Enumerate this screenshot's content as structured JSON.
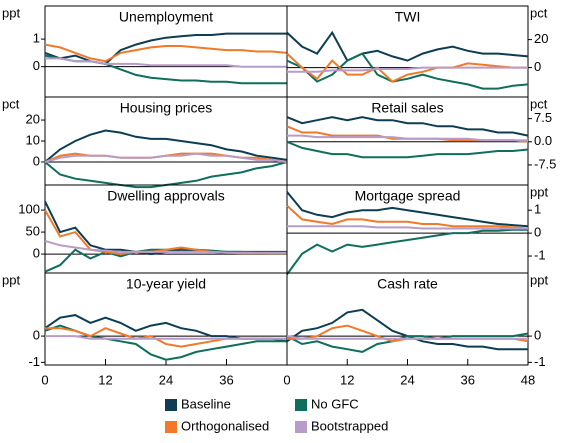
{
  "chart_data": [
    {
      "type": "line",
      "title": "Unemployment",
      "y_label": "ppt",
      "axis_side": "left",
      "x": [
        0,
        3,
        6,
        9,
        12,
        15,
        18,
        21,
        24,
        27,
        30,
        33,
        36,
        39,
        42,
        45,
        48
      ],
      "xlim": [
        0,
        48
      ],
      "ylim": [
        -1.1,
        2.2
      ],
      "yticks": [
        0,
        1
      ],
      "series": [
        {
          "values": [
            0.5,
            0.3,
            0.4,
            0.2,
            0.1,
            0.6,
            0.8,
            0.95,
            1.05,
            1.1,
            1.15,
            1.15,
            1.2,
            1.2,
            1.2,
            1.2,
            1.2
          ]
        },
        {
          "values": [
            0.4,
            0.3,
            0.2,
            0.2,
            0.1,
            -0.1,
            -0.3,
            -0.4,
            -0.45,
            -0.5,
            -0.5,
            -0.55,
            -0.55,
            -0.6,
            -0.6,
            -0.6,
            -0.6
          ]
        },
        {
          "values": [
            0.8,
            0.7,
            0.5,
            0.3,
            0.2,
            0.5,
            0.6,
            0.7,
            0.75,
            0.75,
            0.7,
            0.65,
            0.6,
            0.6,
            0.55,
            0.55,
            0.5
          ]
        },
        {
          "values": [
            0.3,
            0.3,
            0.2,
            0.2,
            0.1,
            0.1,
            0.1,
            0.05,
            0.05,
            0.05,
            0.05,
            0.05,
            0.05,
            0,
            0,
            0,
            0
          ]
        }
      ]
    },
    {
      "type": "line",
      "title": "TWI",
      "y_label": "pct",
      "axis_side": "right",
      "x": [
        0,
        3,
        6,
        9,
        12,
        15,
        18,
        21,
        24,
        27,
        30,
        33,
        36,
        39,
        42,
        45,
        48
      ],
      "xlim": [
        0,
        48
      ],
      "ylim": [
        -21,
        44
      ],
      "yticks": [
        0,
        20
      ],
      "series": [
        {
          "values": [
            25,
            15,
            10,
            25,
            5,
            10,
            12,
            8,
            5,
            10,
            13,
            15,
            12,
            10,
            10,
            9,
            8
          ]
        },
        {
          "values": [
            5,
            0,
            -10,
            -5,
            5,
            10,
            -5,
            -10,
            -8,
            -5,
            -8,
            -10,
            -12,
            -15,
            -15,
            -13,
            -12
          ]
        },
        {
          "values": [
            10,
            0,
            -8,
            5,
            -5,
            -5,
            0,
            -10,
            -5,
            -3,
            0,
            0,
            3,
            2,
            1,
            0,
            0
          ]
        },
        {
          "values": [
            -3,
            -3,
            -3,
            -2,
            -2,
            -2,
            -1,
            -1,
            -1,
            0,
            0,
            0,
            0,
            0,
            0,
            0,
            0
          ]
        }
      ]
    },
    {
      "type": "line",
      "title": "Housing prices",
      "y_label": "pct",
      "axis_side": "left",
      "x": [
        0,
        3,
        6,
        9,
        12,
        15,
        18,
        21,
        24,
        27,
        30,
        33,
        36,
        39,
        42,
        45,
        48
      ],
      "xlim": [
        0,
        48
      ],
      "ylim": [
        -11,
        31
      ],
      "yticks": [
        0,
        10,
        20
      ],
      "series": [
        {
          "values": [
            0,
            6,
            10,
            13,
            15,
            14,
            12,
            11,
            11,
            10,
            9,
            8,
            6,
            5,
            3,
            2,
            1
          ]
        },
        {
          "values": [
            0,
            -6,
            -8,
            -9,
            -10,
            -11,
            -12,
            -12,
            -11,
            -10,
            -9,
            -7,
            -6,
            -5,
            -3,
            -2,
            0
          ]
        },
        {
          "values": [
            0,
            3,
            4,
            3,
            3,
            2,
            2,
            2,
            3,
            4,
            4,
            4,
            3,
            2,
            2,
            1,
            0
          ]
        },
        {
          "values": [
            0,
            2,
            3,
            3,
            3,
            2,
            2,
            2,
            3,
            3,
            4,
            3,
            3,
            2,
            1,
            1,
            0
          ]
        }
      ]
    },
    {
      "type": "line",
      "title": "Retail sales",
      "y_label": "pct",
      "axis_side": "right",
      "x": [
        0,
        3,
        6,
        9,
        12,
        15,
        18,
        21,
        24,
        27,
        30,
        33,
        36,
        39,
        42,
        45,
        48
      ],
      "xlim": [
        0,
        48
      ],
      "ylim": [
        -14,
        14.5
      ],
      "yticks": [
        7.5,
        {
          "value": 0,
          "label": "0.0"
        },
        -7.5
      ],
      "series": [
        {
          "values": [
            8,
            6,
            7,
            8,
            7,
            8,
            7,
            7,
            6,
            6,
            5,
            5,
            4,
            4,
            3,
            3,
            2
          ]
        },
        {
          "values": [
            0,
            -2,
            -3,
            -4,
            -4,
            -5,
            -5,
            -5,
            -5,
            -4.5,
            -4,
            -4,
            -4,
            -3.5,
            -3,
            -3,
            -2.5
          ]
        },
        {
          "values": [
            5,
            3,
            3,
            2,
            2,
            2,
            2,
            1,
            1,
            1,
            1,
            0.5,
            0.5,
            0.5,
            0.5,
            0.5,
            0
          ]
        },
        {
          "values": [
            2,
            2,
            1.5,
            1.5,
            1.5,
            1.5,
            1.5,
            1.5,
            1,
            1,
            1,
            1,
            1,
            0.5,
            0.5,
            0.5,
            0.5
          ]
        }
      ]
    },
    {
      "type": "line",
      "title": "Dwelling approvals",
      "axis_side": "left",
      "x": [
        0,
        3,
        6,
        9,
        12,
        15,
        18,
        21,
        24,
        27,
        30,
        33,
        36,
        39,
        42,
        45,
        48
      ],
      "xlim": [
        0,
        48
      ],
      "ylim": [
        -43,
        157
      ],
      "yticks": [
        0,
        50,
        100
      ],
      "series": [
        {
          "values": [
            120,
            50,
            60,
            20,
            10,
            10,
            5,
            0,
            5,
            10,
            8,
            5,
            5,
            5,
            5,
            5,
            5
          ]
        },
        {
          "values": [
            -40,
            -25,
            10,
            -10,
            5,
            -5,
            5,
            10,
            10,
            12,
            10,
            8,
            5,
            5,
            3,
            2,
            2
          ]
        },
        {
          "values": [
            100,
            40,
            50,
            10,
            5,
            0,
            5,
            5,
            10,
            15,
            10,
            5,
            3,
            2,
            2,
            2,
            2
          ]
        },
        {
          "values": [
            30,
            20,
            15,
            10,
            8,
            5,
            5,
            5,
            5,
            5,
            5,
            5,
            3,
            3,
            3,
            3,
            3
          ]
        }
      ]
    },
    {
      "type": "line",
      "title": "Mortgage spread",
      "y_label": "ppt",
      "axis_side": "right",
      "x": [
        0,
        3,
        6,
        9,
        12,
        15,
        18,
        21,
        24,
        27,
        30,
        33,
        36,
        39,
        42,
        45,
        48
      ],
      "xlim": [
        0,
        48
      ],
      "ylim": [
        -1.74,
        2.1
      ],
      "yticks": [
        1,
        0,
        -1
      ],
      "series": [
        {
          "values": [
            1.8,
            1.0,
            0.8,
            0.7,
            0.9,
            1.0,
            1.0,
            1.1,
            1.0,
            0.9,
            0.8,
            0.7,
            0.6,
            0.5,
            0.4,
            0.35,
            0.3
          ]
        },
        {
          "values": [
            -1.8,
            -0.9,
            -0.5,
            -0.8,
            -0.5,
            -0.6,
            -0.5,
            -0.4,
            -0.3,
            -0.2,
            -0.1,
            0,
            0,
            0.1,
            0.1,
            0.15,
            0.15
          ]
        },
        {
          "values": [
            1.2,
            0.6,
            0.5,
            0.4,
            0.6,
            0.6,
            0.5,
            0.5,
            0.5,
            0.4,
            0.4,
            0.3,
            0.3,
            0.3,
            0.3,
            0.25,
            0.2
          ]
        },
        {
          "values": [
            0.3,
            0.3,
            0.3,
            0.3,
            0.3,
            0.3,
            0.25,
            0.25,
            0.25,
            0.2,
            0.2,
            0.2,
            0.2,
            0.2,
            0.2,
            0.2,
            0.2
          ]
        }
      ]
    },
    {
      "type": "line",
      "title": "10-year yield",
      "y_label": "ppt",
      "axis_side": "left",
      "x": [
        0,
        3,
        6,
        9,
        12,
        15,
        18,
        21,
        24,
        27,
        30,
        33,
        36,
        39,
        42,
        45,
        48
      ],
      "xlim": [
        0,
        48
      ],
      "xticks": [
        0,
        12,
        24,
        36
      ],
      "ylim": [
        -1.1,
        2.4
      ],
      "yticks": [
        0,
        -1
      ],
      "series": [
        {
          "values": [
            0.3,
            0.7,
            0.8,
            0.5,
            0.7,
            0.5,
            0.2,
            0.4,
            0.5,
            0.3,
            0.2,
            0,
            0,
            -0.1,
            -0.1,
            -0.1,
            -0.2
          ]
        },
        {
          "values": [
            0.2,
            0.4,
            0.2,
            0,
            -0.1,
            -0.2,
            -0.3,
            -0.7,
            -0.9,
            -0.8,
            -0.6,
            -0.5,
            -0.4,
            -0.3,
            -0.2,
            -0.2,
            -0.2
          ]
        },
        {
          "values": [
            0.3,
            0.3,
            0.2,
            0,
            0.3,
            0.1,
            -0.1,
            0,
            -0.3,
            -0.4,
            -0.3,
            -0.2,
            -0.1,
            -0.1,
            -0.1,
            -0.1,
            -0.1
          ]
        },
        {
          "values": [
            0,
            0,
            0,
            -0.1,
            -0.1,
            -0.1,
            -0.1,
            -0.1,
            -0.1,
            -0.1,
            -0.1,
            -0.1,
            -0.1,
            -0.1,
            -0.1,
            -0.1,
            -0.1
          ]
        }
      ]
    },
    {
      "type": "line",
      "title": "Cash rate",
      "y_label": "ppt",
      "axis_side": "right",
      "x": [
        0,
        3,
        6,
        9,
        12,
        15,
        18,
        21,
        24,
        27,
        30,
        33,
        36,
        39,
        42,
        45,
        48
      ],
      "xlim": [
        0,
        48
      ],
      "xticks": [
        0,
        12,
        24,
        36,
        48
      ],
      "ylim": [
        -1.1,
        2.4
      ],
      "yticks": [
        0,
        -1
      ],
      "series": [
        {
          "values": [
            -0.2,
            0.2,
            0.3,
            0.5,
            0.9,
            1.0,
            0.6,
            0.2,
            0,
            -0.2,
            -0.3,
            -0.3,
            -0.4,
            -0.4,
            -0.5,
            -0.5,
            -0.5
          ]
        },
        {
          "values": [
            0,
            -0.3,
            -0.2,
            -0.4,
            -0.5,
            -0.6,
            -0.3,
            -0.2,
            0,
            0,
            -0.1,
            0,
            0,
            0,
            0,
            0,
            0.1
          ]
        },
        {
          "values": [
            -0.1,
            -0.1,
            0,
            0.3,
            0.4,
            0.2,
            0,
            -0.2,
            -0.1,
            -0.1,
            -0.1,
            -0.1,
            -0.1,
            -0.1,
            -0.1,
            -0.1,
            -0.2
          ]
        },
        {
          "values": [
            0,
            -0.1,
            -0.1,
            -0.1,
            -0.1,
            -0.1,
            -0.1,
            -0.1,
            -0.1,
            -0.1,
            -0.1,
            -0.1,
            -0.1,
            -0.1,
            -0.1,
            -0.1,
            -0.1
          ]
        }
      ]
    }
  ],
  "legend": [
    {
      "name": "Baseline",
      "color": "#0d3d52"
    },
    {
      "name": "No GFC",
      "color": "#0f6e5c"
    },
    {
      "name": "Orthogonalised",
      "color": "#f07a2a"
    },
    {
      "name": "Bootstrapped",
      "color": "#b89bc9"
    }
  ]
}
